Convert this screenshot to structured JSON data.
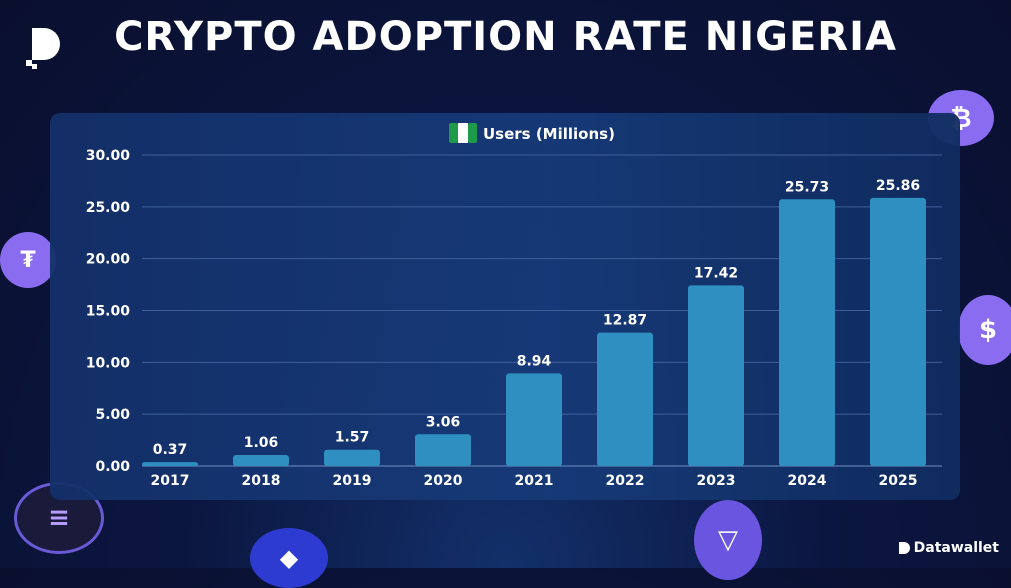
{
  "title": "CRYPTO ADOPTION RATE NIGERIA",
  "brand": "Datawallet",
  "colors": {
    "bar": "#2e8fc0",
    "background": "#0a0f2e",
    "panel": "#163a78",
    "flag_green": "#1f9a4a",
    "coin": "#8a6cf0"
  },
  "chart_data": {
    "type": "bar",
    "legend": "Users (Millions)",
    "legend_icon": "nigeria-flag-icon",
    "categories": [
      "2017",
      "2018",
      "2019",
      "2020",
      "2021",
      "2022",
      "2023",
      "2024",
      "2025"
    ],
    "values": [
      0.37,
      1.06,
      1.57,
      3.06,
      8.94,
      12.87,
      17.42,
      25.73,
      25.86
    ],
    "data_labels": [
      "0.37",
      "1.06",
      "1.57",
      "3.06",
      "8.94",
      "12.87",
      "17.42",
      "25.73",
      "25.86"
    ],
    "yticks": [
      "0.00",
      "5.00",
      "10.00",
      "15.00",
      "20.00",
      "25.00",
      "30.00"
    ],
    "ylim": [
      0,
      30
    ],
    "grid": true,
    "legend_position": "top-center"
  }
}
